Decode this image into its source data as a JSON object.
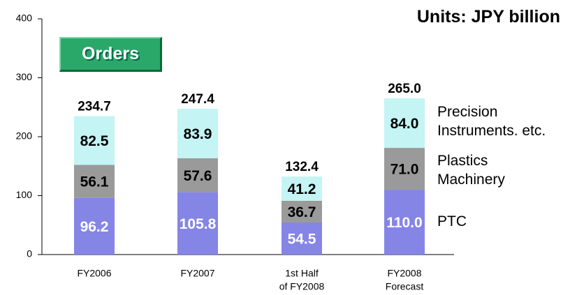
{
  "chart_data": {
    "type": "stacked_bar",
    "title": "Units: JPY billion",
    "annotation": "Orders",
    "categories": [
      [
        "FY2006"
      ],
      [
        "FY2007"
      ],
      [
        "1st Half",
        "of FY2008"
      ],
      [
        "FY2008",
        "Forecast"
      ]
    ],
    "series": [
      {
        "name": "PTC",
        "color": "#8585e6",
        "label_color": "#ffffff",
        "values": [
          96.2,
          105.8,
          54.5,
          110.0
        ],
        "value_labels": [
          "96.2",
          "105.8",
          "54.5",
          "110.0"
        ]
      },
      {
        "name": "Plastics Machinery",
        "color": "#9a9a9a",
        "label_color": "#000000",
        "values": [
          56.1,
          57.6,
          36.7,
          71.0
        ],
        "value_labels": [
          "56.1",
          "57.6",
          "36.7",
          "71.0"
        ]
      },
      {
        "name": "Precision Instruments. etc.",
        "color": "#c4f4f4",
        "label_color": "#000000",
        "values": [
          82.5,
          83.9,
          41.2,
          84.0
        ],
        "value_labels": [
          "82.5",
          "83.9",
          "41.2",
          "84.0"
        ]
      }
    ],
    "totals": [
      234.7,
      247.4,
      132.4,
      265.0
    ],
    "total_labels": [
      "234.7",
      "247.4",
      "132.4",
      "265.0"
    ],
    "ylim": [
      0,
      400
    ],
    "yticks": [
      0,
      100,
      200,
      300,
      400
    ]
  }
}
